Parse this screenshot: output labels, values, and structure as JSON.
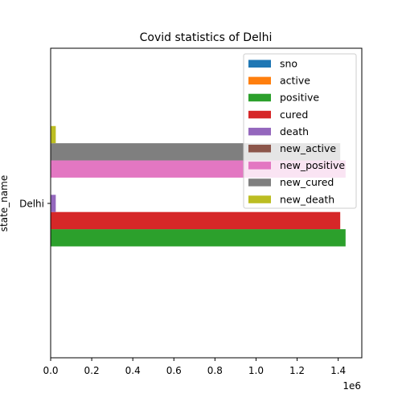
{
  "chart_data": {
    "type": "bar",
    "orientation": "horizontal",
    "title": "Covid statistics of Delhi",
    "xlabel": "",
    "ylabel": "state_name",
    "categories": [
      "Delhi"
    ],
    "x_scale_label": "1e6",
    "xlim": [
      0,
      1515000
    ],
    "x_ticks": [
      0,
      200000,
      400000,
      600000,
      800000,
      1000000,
      1200000,
      1400000
    ],
    "x_tick_labels": [
      "0.0",
      "0.2",
      "0.4",
      "0.6",
      "0.8",
      "1.0",
      "1.2",
      "1.4"
    ],
    "grid": false,
    "legend_position": "upper right",
    "series": [
      {
        "name": "sno",
        "color": "#1f77b4",
        "values": [
          34
        ]
      },
      {
        "name": "active",
        "color": "#ff7f0e",
        "values": [
          1100
        ]
      },
      {
        "name": "positive",
        "color": "#2ca02c",
        "values": [
          1436000
        ]
      },
      {
        "name": "cured",
        "color": "#d62728",
        "values": [
          1410000
        ]
      },
      {
        "name": "death",
        "color": "#9467bd",
        "values": [
          24900
        ]
      },
      {
        "name": "new_active",
        "color": "#8c564b",
        "values": [
          1050
        ]
      },
      {
        "name": "new_positive",
        "color": "#e377c2",
        "values": [
          1436100
        ]
      },
      {
        "name": "new_cured",
        "color": "#7f7f7f",
        "values": [
          1410100
        ]
      },
      {
        "name": "new_death",
        "color": "#bcbd22",
        "values": [
          24900
        ]
      }
    ]
  }
}
